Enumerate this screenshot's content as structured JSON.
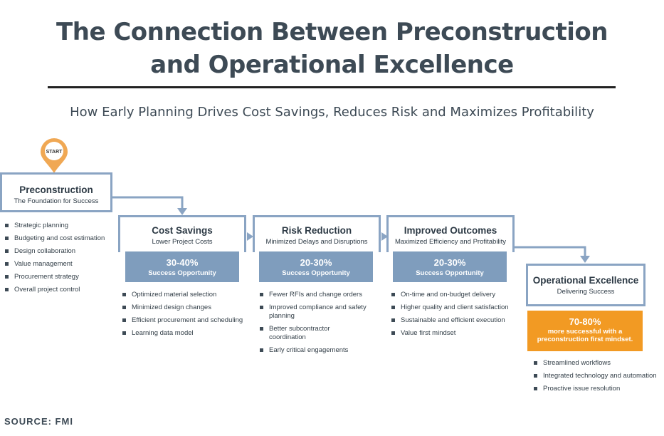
{
  "title_line1": "The Connection Between Preconstruction",
  "title_line2": "and Operational Excellence",
  "subtitle": "How Early Planning Drives Cost Savings, Reduces Risk and Maximizes Profitability",
  "start_label": "START",
  "preconstruction": {
    "heading": "Preconstruction",
    "sub": "The Foundation for Success",
    "bullets": [
      "Strategic planning",
      "Budgeting and cost estimation",
      "Design collaboration",
      "Value management",
      "Procurement strategy",
      "Overall project control"
    ]
  },
  "stages": [
    {
      "heading": "Cost Savings",
      "sub": "Lower Project Costs",
      "pct": "30-40%",
      "pct_label": "Success Opportunity",
      "bullets": [
        "Optimized material selection",
        "Minimized design changes",
        "Efficient procurement and scheduling",
        "Learning data model"
      ]
    },
    {
      "heading": "Risk Reduction",
      "sub": "Minimized Delays and Disruptions",
      "pct": "20-30%",
      "pct_label": "Success Opportunity",
      "bullets": [
        "Fewer RFIs and change orders",
        "Improved compliance and safety planning",
        "Better subcontractor coordination",
        "Early critical engagements"
      ]
    },
    {
      "heading": "Improved Outcomes",
      "sub": "Maximized Efficiency and Profitability",
      "pct": "20-30%",
      "pct_label": "Success Opportunity",
      "bullets": [
        "On-time and on-budget delivery",
        "Higher quality and client satisfaction",
        "Sustainable and efficient execution",
        "Value first mindset"
      ]
    }
  ],
  "operational": {
    "heading": "Operational Excellence",
    "sub": "Delivering Success",
    "pct": "70-80%",
    "pct_line2": "more successful with a",
    "pct_line3": "preconstruction first mindset.",
    "bullets": [
      "Streamlined workflows",
      "Integrated technology and automation",
      "Proactive issue resolution"
    ]
  },
  "source": "SOURCE: FMI",
  "colors": {
    "blue_border": "#8aa4c3",
    "blue_fill": "#7f9dbd",
    "orange": "#f29a23",
    "pin": "#f0a854"
  }
}
